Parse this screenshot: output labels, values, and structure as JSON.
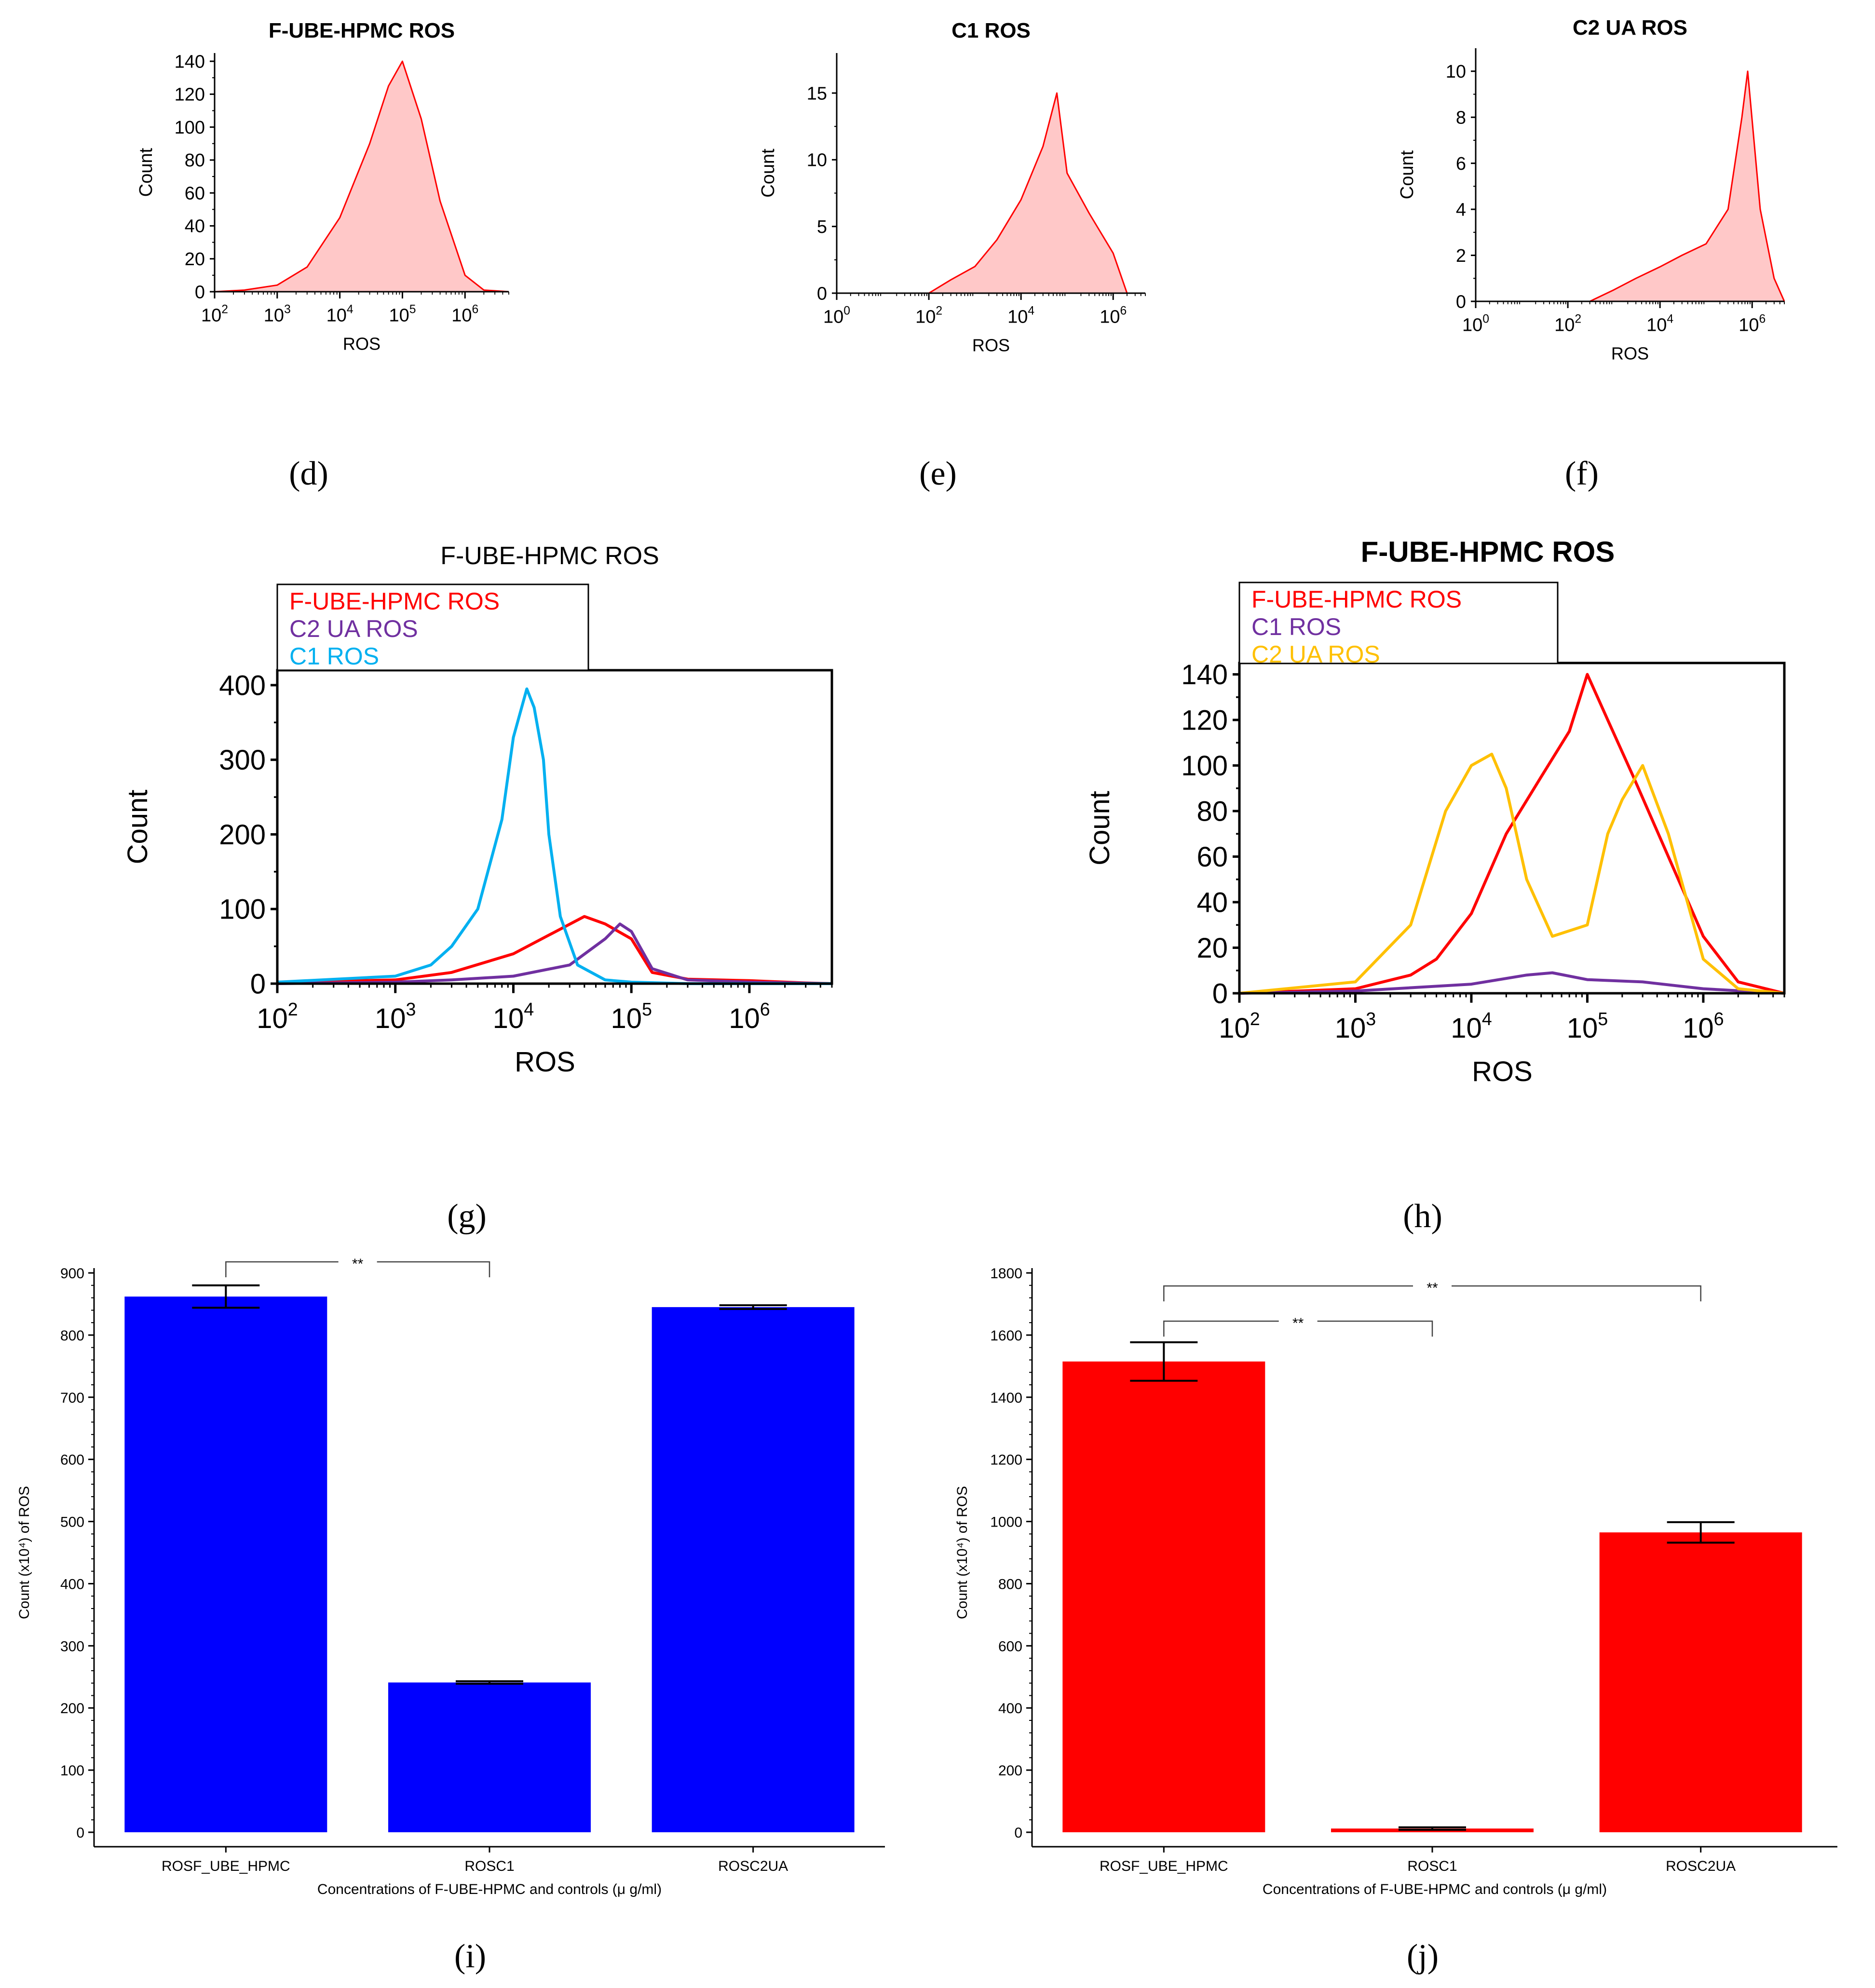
{
  "figure": {
    "panel_labels": [
      "(d)",
      "(e)",
      "(f)",
      "(g)",
      "(h)",
      "(i)",
      "(j)"
    ]
  },
  "chart_data": [
    {
      "id": "d",
      "type": "area",
      "title": "F-UBE-HPMC ROS",
      "xlabel": "ROS",
      "ylabel": "Count",
      "xscale": "log",
      "xlim": [
        100,
        5000000
      ],
      "ylim": [
        0,
        145
      ],
      "xticks": [
        {
          "value": 100,
          "base": "10",
          "exp": "2"
        },
        {
          "value": 1000,
          "base": "10",
          "exp": "3"
        },
        {
          "value": 10000,
          "base": "10",
          "exp": "4"
        },
        {
          "value": 100000,
          "base": "10",
          "exp": "5"
        },
        {
          "value": 1000000,
          "base": "10",
          "exp": "6"
        }
      ],
      "yticks": [
        0,
        20,
        40,
        60,
        80,
        100,
        120,
        140
      ],
      "series": [
        {
          "name": "F-UBE-HPMC ROS",
          "color": "#ff0000",
          "fill": "#ffc8c8",
          "x": [
            100,
            300,
            1000,
            3000,
            10000,
            30000,
            60000,
            100000,
            200000,
            400000,
            1000000,
            2000000,
            5000000
          ],
          "y": [
            0,
            1,
            4,
            15,
            45,
            90,
            125,
            140,
            105,
            55,
            10,
            1,
            0
          ]
        }
      ]
    },
    {
      "id": "e",
      "type": "area",
      "title": "C1 ROS",
      "xlabel": "ROS",
      "ylabel": "Count",
      "xscale": "log",
      "xlim": [
        1,
        5000000
      ],
      "ylim": [
        0,
        18
      ],
      "xticks": [
        {
          "value": 1,
          "base": "10",
          "exp": "0"
        },
        {
          "value": 100,
          "base": "10",
          "exp": "2"
        },
        {
          "value": 10000,
          "base": "10",
          "exp": "4"
        },
        {
          "value": 1000000,
          "base": "10",
          "exp": "6"
        }
      ],
      "yticks": [
        0,
        5,
        10,
        15
      ],
      "series": [
        {
          "name": "C1 ROS",
          "color": "#ff0000",
          "fill": "#ffc8c8",
          "x": [
            1,
            100,
            300,
            1000,
            3000,
            10000,
            30000,
            60000,
            100000,
            300000,
            1000000,
            2000000,
            5000000
          ],
          "y": [
            0,
            0,
            1,
            2,
            4,
            7,
            11,
            15,
            9,
            6,
            3,
            0,
            0
          ]
        }
      ]
    },
    {
      "id": "f",
      "type": "area",
      "title": "C2 UA ROS",
      "xlabel": "ROS",
      "ylabel": "Count",
      "xscale": "log",
      "xlim": [
        1,
        5000000
      ],
      "ylim": [
        0,
        11
      ],
      "xticks": [
        {
          "value": 1,
          "base": "10",
          "exp": "0"
        },
        {
          "value": 100,
          "base": "10",
          "exp": "2"
        },
        {
          "value": 10000,
          "base": "10",
          "exp": "4"
        },
        {
          "value": 1000000,
          "base": "10",
          "exp": "6"
        }
      ],
      "yticks": [
        0,
        2,
        4,
        6,
        8,
        10
      ],
      "series": [
        {
          "name": "C2 UA ROS",
          "color": "#ff0000",
          "fill": "#ffc8c8",
          "x": [
            1,
            300,
            1000,
            3000,
            10000,
            30000,
            100000,
            300000,
            600000,
            800000,
            1500000,
            3000000,
            5000000
          ],
          "y": [
            0,
            0,
            0.5,
            1,
            1.5,
            2,
            2.5,
            4,
            8,
            10,
            4,
            1,
            0
          ]
        }
      ]
    },
    {
      "id": "g",
      "type": "line",
      "title": "F-UBE-HPMC ROS",
      "xlabel": "ROS",
      "ylabel": "Count",
      "xscale": "log",
      "xlim": [
        100,
        5000000
      ],
      "ylim": [
        0,
        420
      ],
      "legend": "top-left",
      "xticks": [
        {
          "value": 100,
          "base": "10",
          "exp": "2"
        },
        {
          "value": 1000,
          "base": "10",
          "exp": "3"
        },
        {
          "value": 10000,
          "base": "10",
          "exp": "4"
        },
        {
          "value": 100000,
          "base": "10",
          "exp": "5"
        },
        {
          "value": 1000000,
          "base": "10",
          "exp": "6"
        }
      ],
      "yticks": [
        0,
        100,
        200,
        300,
        400
      ],
      "series": [
        {
          "name": "F-UBE-HPMC ROS",
          "color": "#ff0000",
          "x": [
            100,
            1000,
            3000,
            10000,
            20000,
            40000,
            60000,
            100000,
            150000,
            300000,
            1000000,
            3000000,
            5000000
          ],
          "y": [
            2,
            5,
            15,
            40,
            65,
            90,
            80,
            60,
            15,
            6,
            4,
            1,
            0
          ]
        },
        {
          "name": "C2 UA ROS",
          "color": "#7030a0",
          "x": [
            100,
            1000,
            3000,
            10000,
            30000,
            60000,
            80000,
            100000,
            150000,
            300000,
            1000000,
            5000000
          ],
          "y": [
            0,
            2,
            5,
            10,
            25,
            60,
            80,
            70,
            20,
            5,
            2,
            0
          ]
        },
        {
          "name": "C1 ROS",
          "color": "#00b0f0",
          "x": [
            100,
            1000,
            2000,
            3000,
            5000,
            8000,
            10000,
            13000,
            15000,
            18000,
            20000,
            25000,
            35000,
            60000,
            100000,
            300000,
            5000000
          ],
          "y": [
            2,
            10,
            25,
            50,
            100,
            220,
            330,
            395,
            370,
            300,
            200,
            90,
            25,
            5,
            2,
            0,
            0
          ]
        }
      ]
    },
    {
      "id": "h",
      "type": "line",
      "title": "F-UBE-HPMC ROS",
      "xlabel": "ROS",
      "ylabel": "Count",
      "xscale": "log",
      "xlim": [
        100,
        5000000
      ],
      "ylim": [
        0,
        145
      ],
      "legend": "top-left",
      "xticks": [
        {
          "value": 100,
          "base": "10",
          "exp": "2"
        },
        {
          "value": 1000,
          "base": "10",
          "exp": "3"
        },
        {
          "value": 10000,
          "base": "10",
          "exp": "4"
        },
        {
          "value": 100000,
          "base": "10",
          "exp": "5"
        },
        {
          "value": 1000000,
          "base": "10",
          "exp": "6"
        }
      ],
      "yticks": [
        0,
        20,
        40,
        60,
        80,
        100,
        120,
        140
      ],
      "series": [
        {
          "name": "F-UBE-HPMC ROS",
          "color": "#ff0000",
          "x": [
            100,
            1000,
            3000,
            5000,
            10000,
            20000,
            40000,
            70000,
            100000,
            150000,
            250000,
            500000,
            1000000,
            2000000,
            5000000
          ],
          "y": [
            0,
            2,
            8,
            15,
            35,
            70,
            95,
            115,
            140,
            120,
            95,
            60,
            25,
            5,
            0
          ]
        },
        {
          "name": "C1 ROS",
          "color": "#7030a0",
          "x": [
            100,
            1000,
            10000,
            30000,
            50000,
            100000,
            300000,
            1000000,
            5000000
          ],
          "y": [
            0,
            1,
            4,
            8,
            9,
            6,
            5,
            2,
            0
          ]
        },
        {
          "name": "C2 UA ROS",
          "color": "#ffc000",
          "x": [
            100,
            1000,
            3000,
            6000,
            10000,
            15000,
            20000,
            30000,
            50000,
            100000,
            150000,
            200000,
            300000,
            500000,
            1000000,
            2000000,
            5000000
          ],
          "y": [
            0,
            5,
            30,
            80,
            100,
            105,
            90,
            50,
            25,
            30,
            70,
            85,
            100,
            70,
            15,
            2,
            0
          ]
        }
      ]
    },
    {
      "id": "i",
      "type": "bar",
      "xlabel": "Concentrations of F-UBE-HPMC and controls (μ g/ml)",
      "ylabel": "Count (x10⁴) of ROS",
      "ylim": [
        0,
        900
      ],
      "yticks": [
        0,
        100,
        200,
        300,
        400,
        500,
        600,
        700,
        800,
        900
      ],
      "categories": [
        "ROSF_UBE_HPMC",
        "ROSC1",
        "ROSC2UA"
      ],
      "values": [
        862,
        241,
        845
      ],
      "errors": [
        18,
        2,
        3
      ],
      "color": "#0000ff",
      "significance": [
        {
          "from": 0,
          "to": 1,
          "label": "**"
        }
      ]
    },
    {
      "id": "j",
      "type": "bar",
      "xlabel": "Concentrations of F-UBE-HPMC and controls (μ g/ml)",
      "ylabel": "Count (x10⁴) of ROS",
      "ylim": [
        0,
        1800
      ],
      "yticks": [
        0,
        200,
        400,
        600,
        800,
        1000,
        1200,
        1400,
        1600,
        1800
      ],
      "categories": [
        "ROSF_UBE_HPMC",
        "ROSC1",
        "ROSC2UA"
      ],
      "values": [
        1515,
        12,
        965
      ],
      "errors": [
        62,
        4,
        33
      ],
      "color": "#ff0000",
      "significance": [
        {
          "from": 0,
          "to": 1,
          "label": "**"
        },
        {
          "from": 0,
          "to": 2,
          "label": "**"
        }
      ]
    }
  ]
}
